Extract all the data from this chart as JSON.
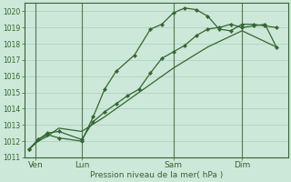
{
  "title": "",
  "xlabel": "Pression niveau de la mer( hPa )",
  "ylabel": "",
  "ylim": [
    1011,
    1020.5
  ],
  "yticks": [
    1011,
    1012,
    1013,
    1014,
    1015,
    1016,
    1017,
    1018,
    1019,
    1020
  ],
  "background_color": "#cce8d8",
  "grid_color": "#aacfbc",
  "line_color": "#336633",
  "day_labels": [
    "Ven",
    "Lun",
    "Sam",
    "Dim"
  ],
  "day_positions": [
    0.5,
    2.5,
    6.5,
    9.5
  ],
  "xlim": [
    0,
    11.5
  ],
  "lines": [
    {
      "x": [
        0.2,
        0.6,
        1.0,
        1.5,
        2.5,
        3.0,
        3.5,
        4.0,
        4.5,
        5.0,
        5.5,
        6.0,
        6.5,
        7.0,
        7.5,
        8.0,
        8.5,
        9.0,
        9.5,
        10.0,
        10.5,
        11.0
      ],
      "y": [
        1011.5,
        1012.1,
        1012.5,
        1012.6,
        1012.1,
        1013.2,
        1013.8,
        1014.3,
        1014.8,
        1015.2,
        1016.2,
        1017.1,
        1017.5,
        1017.9,
        1018.5,
        1018.9,
        1019.0,
        1019.2,
        1019.0,
        1019.1,
        1019.2,
        1017.8
      ],
      "marker": true
    },
    {
      "x": [
        0.2,
        0.6,
        1.0,
        1.5,
        2.5,
        3.0,
        3.5,
        4.0,
        4.8,
        5.5,
        6.0,
        6.5,
        7.0,
        7.5,
        8.0,
        8.5,
        9.0,
        9.5,
        10.0,
        10.5,
        11.0
      ],
      "y": [
        1011.5,
        1012.1,
        1012.4,
        1012.2,
        1012.0,
        1013.5,
        1015.2,
        1016.3,
        1017.3,
        1018.9,
        1019.2,
        1019.9,
        1020.2,
        1020.1,
        1019.7,
        1018.9,
        1018.8,
        1019.2,
        1019.2,
        1019.1,
        1019.0
      ],
      "marker": true
    },
    {
      "x": [
        0.2,
        0.6,
        1.0,
        1.5,
        2.5,
        3.5,
        5.0,
        6.5,
        8.0,
        9.5,
        11.0
      ],
      "y": [
        1011.5,
        1012.0,
        1012.3,
        1012.8,
        1012.6,
        1013.5,
        1015.0,
        1016.5,
        1017.8,
        1018.8,
        1017.8
      ],
      "marker": false
    }
  ],
  "vline_positions": [
    0.5,
    2.5,
    6.5,
    9.5
  ],
  "vline_color": "#557755"
}
